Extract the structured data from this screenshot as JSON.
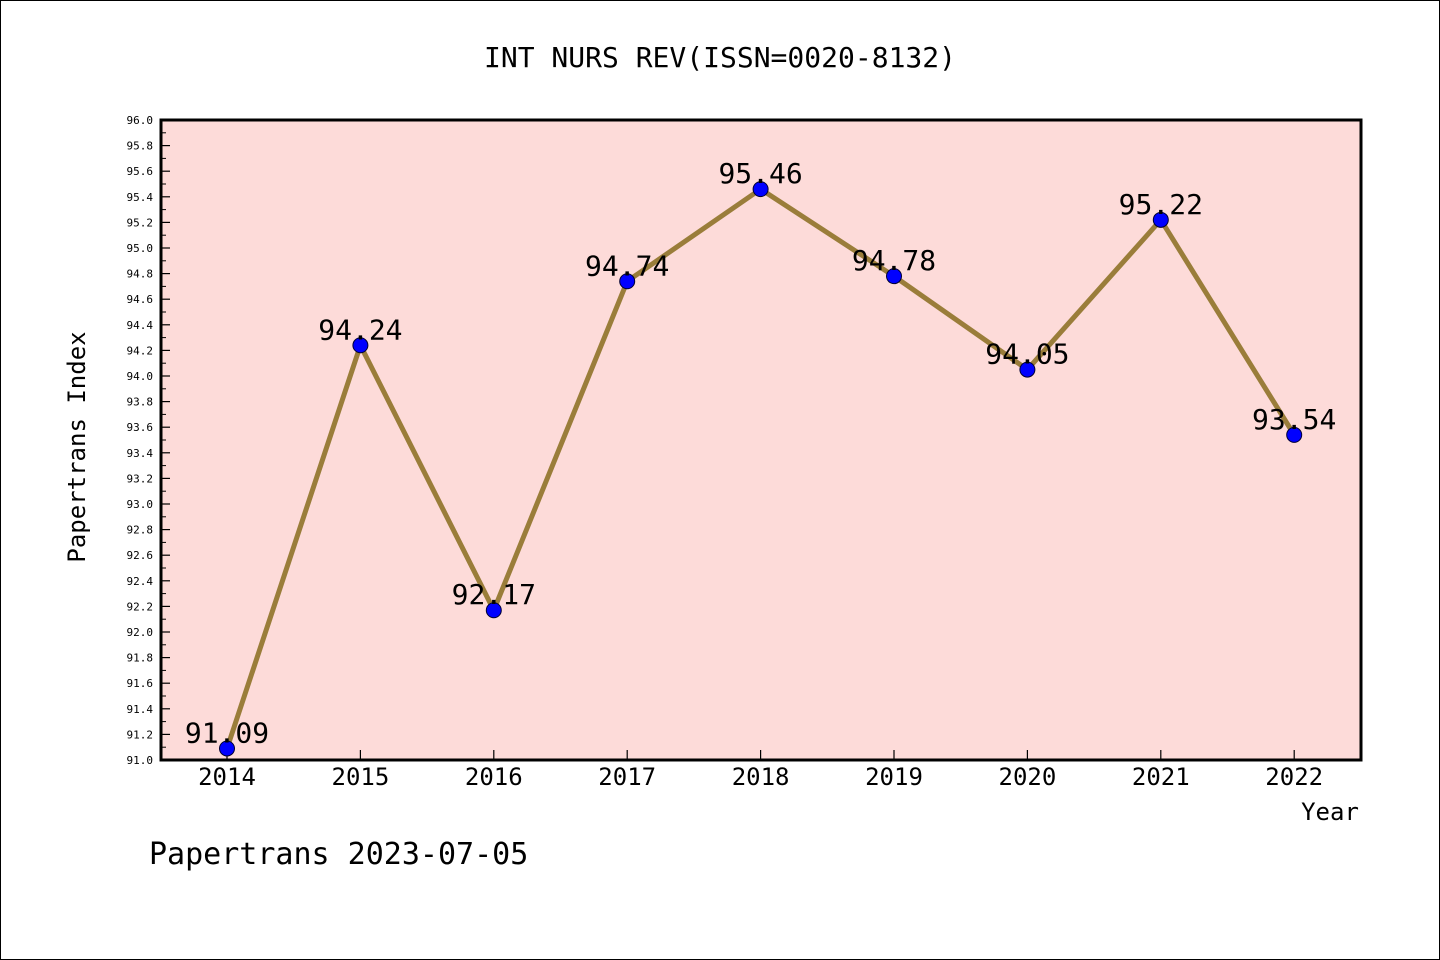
{
  "chart_data": {
    "type": "line",
    "title": "INT NURS REV(ISSN=0020-8132)",
    "xlabel": "Year",
    "ylabel": "Papertrans Index",
    "categories": [
      "2014",
      "2015",
      "2016",
      "2017",
      "2018",
      "2019",
      "2020",
      "2021",
      "2022"
    ],
    "series": [
      {
        "values": [
          91.09,
          94.24,
          92.17,
          94.74,
          95.46,
          94.78,
          94.05,
          95.22,
          93.54
        ]
      }
    ],
    "data_labels": [
      "91.09",
      "94.24",
      "92.17",
      "94.74",
      "95.46",
      "94.78",
      "94.05",
      "95.22",
      "93.54"
    ],
    "ylim": [
      91.0,
      96.0
    ],
    "y_ticks": [
      "91.0",
      "91.2",
      "91.4",
      "91.6",
      "91.8",
      "92.0",
      "92.2",
      "92.4",
      "92.6",
      "92.8",
      "93.0",
      "93.2",
      "93.4",
      "93.6",
      "93.8",
      "94.0",
      "94.2",
      "94.4",
      "94.6",
      "94.8",
      "95.0",
      "95.2",
      "95.4",
      "95.6",
      "95.8",
      "96.0"
    ],
    "grid": false,
    "colors": {
      "plot_background": "#fddbd9",
      "line": "#9a7d3a",
      "marker": "#0000ff"
    }
  },
  "footer": {
    "text": "Papertrans 2023-07-05"
  }
}
